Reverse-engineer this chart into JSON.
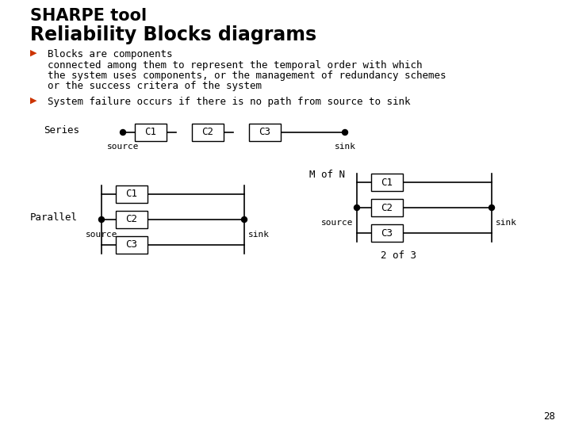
{
  "title1": "SHARPE tool",
  "title2": "Reliability Blocks diagrams",
  "bullet1_header": "Blocks are components",
  "bullet1_body1": "connected among them to represent the temporal order with which",
  "bullet1_body2": "the system uses components, or the management of redundancy schemes",
  "bullet1_body3": "or the success critera of the system",
  "bullet2": "System failure occurs if there is no path from source to sink",
  "bg_color": "#ffffff",
  "title_color": "#000000",
  "text_color": "#000000",
  "line_color": "#000000",
  "bullet_color": "#cc3300",
  "box_color": "#000000",
  "page_number": "28",
  "series_label": "Series",
  "parallel_label": "Parallel",
  "mofn_label": "M of N",
  "twoofthree_label": "2 of 3",
  "source_label": "source",
  "sink_label": "sink"
}
